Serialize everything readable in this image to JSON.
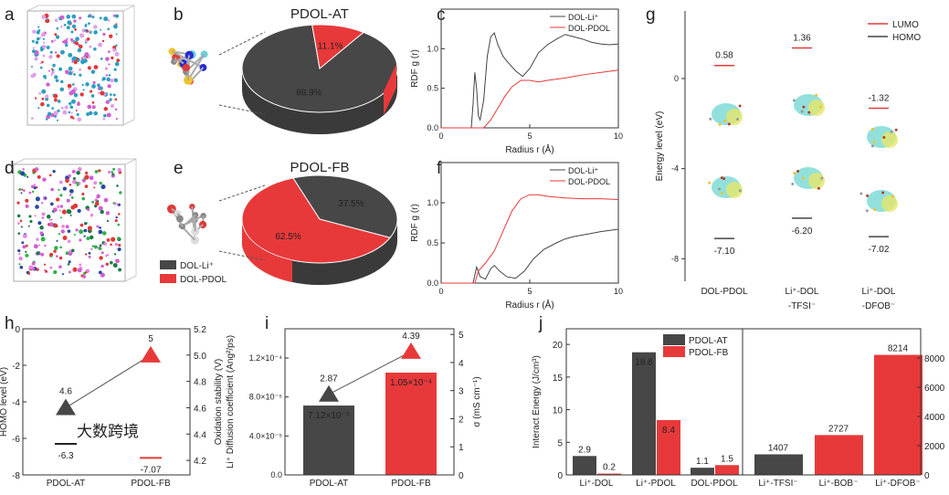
{
  "panel_labels": [
    "a",
    "b",
    "c",
    "d",
    "e",
    "f",
    "g",
    "h",
    "i",
    "j"
  ],
  "chart_data": [
    {
      "id": "b",
      "type": "pie",
      "title": "PDOL-AT",
      "slices": [
        {
          "label": "DOL-Li⁺",
          "value": 88.9,
          "text": "88.9%",
          "color": "#474747"
        },
        {
          "label": "DOL-PDOL",
          "value": 11.1,
          "text": "11.1%",
          "color": "#e8393a"
        }
      ]
    },
    {
      "id": "c",
      "type": "line",
      "xlabel": "Radius r (Å)",
      "ylabel": "RDF g (r)",
      "xlim": [
        0,
        10
      ],
      "ylim": [
        0,
        1.5
      ],
      "xticks": [
        "0",
        "5",
        "10"
      ],
      "yticks": [
        "0.0",
        "0.5",
        "1.0"
      ],
      "series": [
        {
          "name": "DOL-Li⁺",
          "color": "#444444",
          "x": [
            0,
            1.7,
            1.8,
            1.9,
            2.0,
            2.1,
            2.2,
            2.4,
            2.6,
            2.8,
            3.0,
            3.2,
            3.5,
            3.8,
            4.2,
            4.6,
            5.0,
            5.5,
            6.0,
            6.5,
            7.0,
            7.5,
            8.0,
            8.5,
            9.0,
            9.5,
            10
          ],
          "y": [
            0,
            0,
            0.3,
            0.7,
            0.5,
            0.15,
            0.1,
            0.35,
            0.9,
            1.15,
            1.2,
            1.05,
            0.9,
            0.82,
            0.72,
            0.65,
            0.75,
            0.95,
            1.05,
            1.12,
            1.18,
            1.15,
            1.12,
            1.08,
            1.06,
            1.05,
            1.06
          ]
        },
        {
          "name": "DOL-PDOL",
          "color": "#e8393a",
          "x": [
            0,
            2.4,
            2.8,
            3.2,
            3.6,
            4.0,
            4.5,
            5.0,
            5.5,
            6.0,
            7.0,
            8.0,
            9.0,
            10
          ],
          "y": [
            0,
            0,
            0.1,
            0.25,
            0.4,
            0.52,
            0.6,
            0.6,
            0.58,
            0.6,
            0.63,
            0.67,
            0.7,
            0.73
          ]
        }
      ]
    },
    {
      "id": "e",
      "type": "pie",
      "title": "PDOL-FB",
      "slices": [
        {
          "label": "DOL-Li⁺",
          "value": 37.5,
          "text": "37.5%",
          "color": "#474747"
        },
        {
          "label": "DOL-PDOL",
          "value": 62.5,
          "text": "62.5%",
          "color": "#e8393a"
        }
      ]
    },
    {
      "id": "f",
      "type": "line",
      "xlabel": "Radius r (Å)",
      "ylabel": "RDF g (r)",
      "xlim": [
        0,
        10
      ],
      "ylim": [
        0,
        1.5
      ],
      "xticks": [
        "0",
        "5",
        "10"
      ],
      "yticks": [
        "0.0",
        "0.5",
        "1.0"
      ],
      "series": [
        {
          "name": "DOL-Li⁺",
          "color": "#444444",
          "x": [
            0,
            1.8,
            2.0,
            2.2,
            2.5,
            2.8,
            3.0,
            3.3,
            3.7,
            4.2,
            4.7,
            5.2,
            5.8,
            6.5,
            7.0,
            7.5,
            8.0,
            9.0,
            10
          ],
          "y": [
            0,
            0,
            0.2,
            0.08,
            0.05,
            0.18,
            0.22,
            0.15,
            0.08,
            0.06,
            0.15,
            0.3,
            0.42,
            0.5,
            0.55,
            0.58,
            0.6,
            0.64,
            0.67
          ]
        },
        {
          "name": "DOL-PDOL",
          "color": "#e8393a",
          "x": [
            0,
            1.9,
            2.1,
            2.5,
            3.0,
            3.5,
            4.0,
            4.5,
            5.0,
            5.5,
            6.0,
            7.0,
            8.0,
            9.0,
            10
          ],
          "y": [
            0,
            0,
            0.15,
            0.25,
            0.4,
            0.65,
            0.9,
            1.05,
            1.1,
            1.1,
            1.08,
            1.06,
            1.05,
            1.05,
            1.04
          ]
        }
      ]
    },
    {
      "id": "g",
      "type": "scatter",
      "ylabel": "Energy level (eV)",
      "ylim": [
        -9,
        3
      ],
      "yticks": [
        "-8",
        "-4",
        "0"
      ],
      "categories": [
        {
          "line1": "DOL-PDOL",
          "line2": ""
        },
        {
          "line1": "Li⁺-DOL",
          "line2": "-TFSI⁻"
        },
        {
          "line1": "Li⁺-DOL",
          "line2": "-DFOB⁻"
        }
      ],
      "series": [
        {
          "name": "LUMO",
          "color": "#e8393a",
          "values": [
            0.58,
            1.36,
            -1.32
          ],
          "labels": [
            "0.58",
            "1.36",
            "-1.32"
          ]
        },
        {
          "name": "HOMO",
          "color": "#444444",
          "values": [
            -7.1,
            -6.2,
            -7.02
          ],
          "labels": [
            "-7.10",
            "-6.20",
            "-7.02"
          ]
        }
      ]
    },
    {
      "id": "h",
      "type": "scatter",
      "categories": [
        "PDOL-AT",
        "PDOL-FB"
      ],
      "ylabel": "HOMO level (eV)",
      "ylim": [
        -8,
        0
      ],
      "yticks": [
        "-8",
        "-6",
        "-4",
        "-2",
        "0"
      ],
      "y2label": "Oxidation stability (V)",
      "y2lim": [
        4.09,
        5.2
      ],
      "y2ticks": [
        "4.2",
        "4.4",
        "4.6",
        "4.8",
        "5.0",
        "5.2"
      ],
      "homo": {
        "values": [
          -6.3,
          -7.07
        ],
        "labels": [
          "-6.3",
          "-7.07"
        ]
      },
      "oxidation": {
        "values": [
          4.6,
          5.0
        ],
        "labels": [
          "4.6",
          "5"
        ]
      }
    },
    {
      "id": "i",
      "type": "bar",
      "categories": [
        "PDOL-AT",
        "PDOL-FB"
      ],
      "ylabel": "Li⁺ Diffusion coefficient (Ang²/ps)",
      "ylim": [
        0,
        0.00015
      ],
      "yticks": [
        "0.0",
        "4.0×10⁻⁵",
        "8.0×10⁻⁵",
        "1.2×10⁻⁴"
      ],
      "y2label": "σ (mS cm⁻¹)",
      "y2lim": [
        0,
        5.2
      ],
      "y2ticks": [
        "0",
        "1",
        "2",
        "3",
        "4",
        "5"
      ],
      "bars": {
        "values": [
          7.12e-05,
          0.000105
        ],
        "labels": [
          "7.12×10⁻⁵",
          "1.05×10⁻⁴"
        ]
      },
      "conductivity": {
        "values": [
          2.87,
          4.39
        ],
        "labels": [
          "2.87",
          "4.39"
        ]
      }
    },
    {
      "id": "j",
      "type": "bar",
      "ylabel": "Interact Energy (J/cm³)",
      "ylim": [
        0,
        22.4
      ],
      "yticks": [
        "0",
        "5",
        "10",
        "15",
        "20"
      ],
      "y2lim": [
        0,
        10000
      ],
      "y2ticks": [
        "0",
        "2000",
        "4000",
        "6000",
        "8000"
      ],
      "legend": [
        {
          "name": "PDOL-AT",
          "color": "#474747"
        },
        {
          "name": "PDOL-FB",
          "color": "#e8393a"
        }
      ],
      "left_groups": [
        {
          "category": "Li⁺-DOL",
          "at": 2.9,
          "fb": 0.2,
          "at_label": "2.9",
          "fb_label": "0.2"
        },
        {
          "category": "Li⁺-PDOL",
          "at": 18.8,
          "fb": 8.4,
          "at_label": "18.8",
          "fb_label": "8.4"
        },
        {
          "category": "DOL-PDOL",
          "at": 1.1,
          "fb": 1.5,
          "at_label": "1.1",
          "fb_label": "1.5"
        }
      ],
      "right_bars": [
        {
          "category": "Li⁺-TFSI⁻",
          "value": 1407,
          "label": "1407",
          "series": "PDOL-AT"
        },
        {
          "category": "Li⁺-BOB⁻",
          "value": 2727,
          "label": "2727",
          "series": "PDOL-FB"
        },
        {
          "category": "Li⁺-DFOB⁻",
          "value": 8214,
          "label": "8214",
          "series": "PDOL-FB"
        }
      ]
    }
  ],
  "legend_de": [
    {
      "name": "DOL-Li⁺",
      "color": "#474747"
    },
    {
      "name": "DOL-PDOL",
      "color": "#e8393a"
    }
  ],
  "watermark": "大数跨境"
}
